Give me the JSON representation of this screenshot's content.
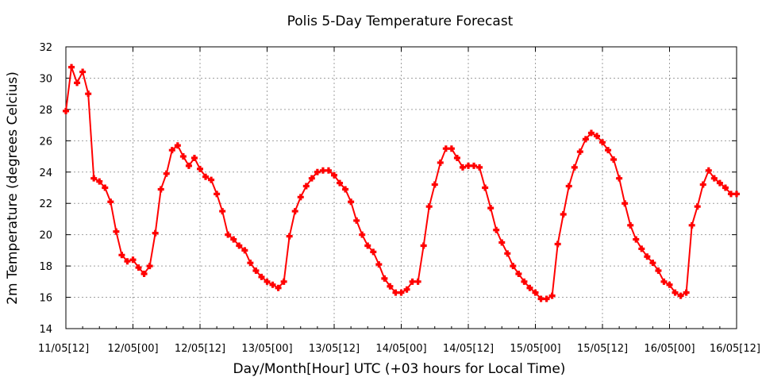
{
  "chart_data": {
    "type": "line",
    "title": "Polis 5-Day Temperature Forecast",
    "xlabel": "Day/Month[Hour] UTC (+03 hours for Local Time)",
    "ylabel": "2m Temperature (degrees Celcius)",
    "ylim": [
      14,
      32
    ],
    "yticks": [
      14,
      16,
      18,
      20,
      22,
      24,
      26,
      28,
      30,
      32
    ],
    "x_range_hours": [
      0,
      120
    ],
    "x_step_hours": 1,
    "xtick_labels": [
      "11/05[12]",
      "12/05[00]",
      "12/05[12]",
      "13/05[00]",
      "13/05[12]",
      "14/05[00]",
      "14/05[12]",
      "15/05[00]",
      "15/05[12]",
      "16/05[00]",
      "16/05[12]"
    ],
    "grid": true,
    "series": [
      {
        "color": "#ff0000",
        "marker": "plus-filled",
        "values": [
          27.9,
          30.7,
          29.7,
          30.4,
          29.0,
          23.6,
          23.4,
          23.0,
          22.1,
          20.2,
          18.7,
          18.3,
          18.4,
          17.9,
          17.5,
          18.0,
          20.1,
          22.9,
          23.9,
          25.4,
          25.7,
          25.0,
          24.4,
          24.9,
          24.2,
          23.7,
          23.5,
          22.6,
          21.5,
          20.0,
          19.7,
          19.3,
          19.0,
          18.2,
          17.7,
          17.3,
          17.0,
          16.8,
          16.6,
          17.0,
          19.9,
          21.5,
          22.4,
          23.1,
          23.6,
          24.0,
          24.1,
          24.1,
          23.8,
          23.3,
          22.9,
          22.1,
          20.9,
          20.0,
          19.3,
          18.9,
          18.1,
          17.2,
          16.7,
          16.3,
          16.3,
          16.5,
          17.0,
          17.0,
          19.3,
          21.8,
          23.2,
          24.6,
          25.5,
          25.5,
          24.9,
          24.3,
          24.4,
          24.4,
          24.3,
          23.0,
          21.7,
          20.3,
          19.5,
          18.8,
          18.0,
          17.5,
          17.0,
          16.6,
          16.3,
          15.9,
          15.9,
          16.1,
          19.4,
          21.3,
          23.1,
          24.3,
          25.3,
          26.1,
          26.5,
          26.3,
          25.9,
          25.4,
          24.8,
          23.6,
          22.0,
          20.6,
          19.7,
          19.1,
          18.6,
          18.2,
          17.7,
          17.0,
          16.8,
          16.3,
          16.1,
          16.3,
          20.6,
          21.8,
          23.2,
          24.1,
          23.6,
          23.3,
          23.0,
          22.6,
          22.6
        ]
      }
    ]
  }
}
